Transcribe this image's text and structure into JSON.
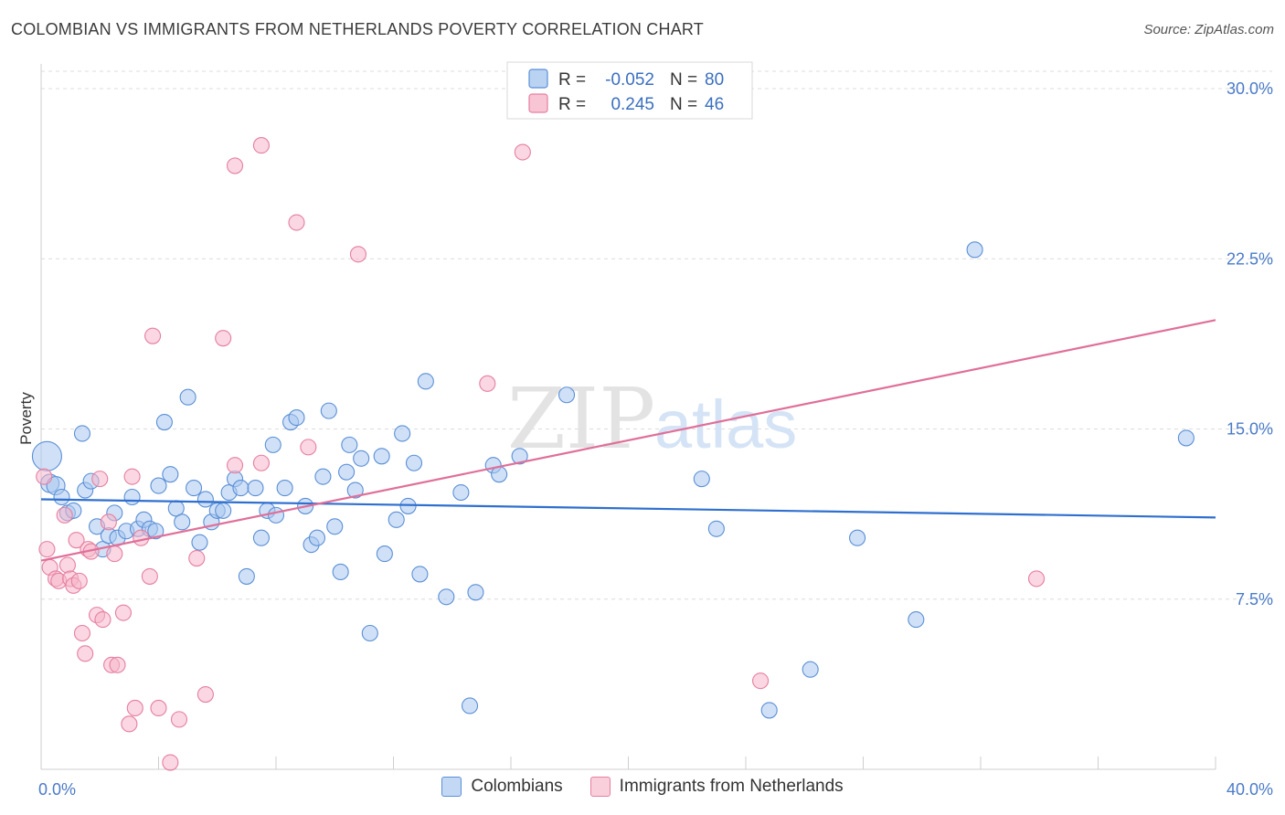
{
  "title": "COLOMBIAN VS IMMIGRANTS FROM NETHERLANDS POVERTY CORRELATION CHART",
  "source": "Source: ZipAtlas.com",
  "watermark": {
    "zip": "ZIP",
    "atlas": "atlas"
  },
  "colors": {
    "blue_fill": "#a9c8f0",
    "blue_stroke": "#5b8fd6",
    "blue_line": "#2f6fcf",
    "pink_fill": "#f6b7cb",
    "pink_stroke": "#e67fa0",
    "pink_line": "#e06f99",
    "grid": "#dcdcdc",
    "axis_text": "#4a7bc8"
  },
  "legend": {
    "rows": [
      {
        "r_label": "R =",
        "r_value": "-0.052",
        "n_label": "N =",
        "n_value": "80"
      },
      {
        "r_label": "R =",
        "r_value": "0.245",
        "n_label": "N =",
        "n_value": "46"
      }
    ]
  },
  "bottom_legend": [
    "Colombians",
    "Immigrants from Netherlands"
  ],
  "chart_data": {
    "type": "scatter",
    "xlabel": "",
    "ylabel": "Poverty",
    "xlim": [
      0,
      40
    ],
    "ylim": [
      0,
      31
    ],
    "x_tick_labels": [
      {
        "value": 0,
        "label": "0.0%"
      },
      {
        "value": 40,
        "label": "40.0%"
      }
    ],
    "y_tick_labels": [
      {
        "value": 7.5,
        "label": "7.5%"
      },
      {
        "value": 15,
        "label": "15.0%"
      },
      {
        "value": 22.5,
        "label": "22.5%"
      },
      {
        "value": 30,
        "label": "30.0%"
      }
    ],
    "grid": true,
    "series": [
      {
        "name": "Colombians",
        "trend": {
          "x": [
            0,
            40
          ],
          "y": [
            11.9,
            11.1
          ]
        },
        "points": [
          [
            0.2,
            13.8
          ],
          [
            0.3,
            12.6
          ],
          [
            0.5,
            12.5
          ],
          [
            0.7,
            12.0
          ],
          [
            0.9,
            11.3
          ],
          [
            1.1,
            11.4
          ],
          [
            1.4,
            14.8
          ],
          [
            1.5,
            12.3
          ],
          [
            1.7,
            12.7
          ],
          [
            1.9,
            10.7
          ],
          [
            2.1,
            9.7
          ],
          [
            2.3,
            10.3
          ],
          [
            2.5,
            11.3
          ],
          [
            2.6,
            10.2
          ],
          [
            2.9,
            10.5
          ],
          [
            3.1,
            12.0
          ],
          [
            3.3,
            10.6
          ],
          [
            3.5,
            11.0
          ],
          [
            3.7,
            10.6
          ],
          [
            3.9,
            10.5
          ],
          [
            4.0,
            12.5
          ],
          [
            4.2,
            15.3
          ],
          [
            4.4,
            13.0
          ],
          [
            4.6,
            11.5
          ],
          [
            4.8,
            10.9
          ],
          [
            5.0,
            16.4
          ],
          [
            5.2,
            12.4
          ],
          [
            5.4,
            10.0
          ],
          [
            5.6,
            11.9
          ],
          [
            5.8,
            10.9
          ],
          [
            6.0,
            11.4
          ],
          [
            6.2,
            11.4
          ],
          [
            6.4,
            12.2
          ],
          [
            6.6,
            12.8
          ],
          [
            6.8,
            12.4
          ],
          [
            7.0,
            8.5
          ],
          [
            7.3,
            12.4
          ],
          [
            7.5,
            10.2
          ],
          [
            7.7,
            11.4
          ],
          [
            7.9,
            14.3
          ],
          [
            8.0,
            11.2
          ],
          [
            8.3,
            12.4
          ],
          [
            8.5,
            15.3
          ],
          [
            8.7,
            15.5
          ],
          [
            9.0,
            11.6
          ],
          [
            9.2,
            9.9
          ],
          [
            9.4,
            10.2
          ],
          [
            9.6,
            12.9
          ],
          [
            9.8,
            15.8
          ],
          [
            10.0,
            10.7
          ],
          [
            10.2,
            8.7
          ],
          [
            10.4,
            13.1
          ],
          [
            10.5,
            14.3
          ],
          [
            10.7,
            12.3
          ],
          [
            10.9,
            13.7
          ],
          [
            11.2,
            6.0
          ],
          [
            11.6,
            13.8
          ],
          [
            11.7,
            9.5
          ],
          [
            12.1,
            11.0
          ],
          [
            12.3,
            14.8
          ],
          [
            12.5,
            11.6
          ],
          [
            12.7,
            13.5
          ],
          [
            12.9,
            8.6
          ],
          [
            13.1,
            17.1
          ],
          [
            13.8,
            7.6
          ],
          [
            14.3,
            12.2
          ],
          [
            14.6,
            2.8
          ],
          [
            14.8,
            7.8
          ],
          [
            15.4,
            13.4
          ],
          [
            15.6,
            13.0
          ],
          [
            16.3,
            13.8
          ],
          [
            17.9,
            16.5
          ],
          [
            22.5,
            12.8
          ],
          [
            23.0,
            10.6
          ],
          [
            24.8,
            2.6
          ],
          [
            26.2,
            4.4
          ],
          [
            27.8,
            10.2
          ],
          [
            29.8,
            6.6
          ],
          [
            31.8,
            22.9
          ],
          [
            39.0,
            14.6
          ]
        ]
      },
      {
        "name": "Immigrants from Netherlands",
        "trend": {
          "x": [
            0,
            40
          ],
          "y": [
            9.2,
            19.8
          ]
        },
        "points": [
          [
            0.1,
            12.9
          ],
          [
            0.2,
            9.7
          ],
          [
            0.3,
            8.9
          ],
          [
            0.5,
            8.4
          ],
          [
            0.6,
            8.3
          ],
          [
            0.8,
            11.2
          ],
          [
            0.9,
            9.0
          ],
          [
            1.0,
            8.4
          ],
          [
            1.1,
            8.1
          ],
          [
            1.2,
            10.1
          ],
          [
            1.3,
            8.3
          ],
          [
            1.4,
            6.0
          ],
          [
            1.5,
            5.1
          ],
          [
            1.6,
            9.7
          ],
          [
            1.7,
            9.6
          ],
          [
            1.9,
            6.8
          ],
          [
            2.0,
            12.8
          ],
          [
            2.1,
            6.6
          ],
          [
            2.3,
            10.9
          ],
          [
            2.4,
            4.6
          ],
          [
            2.5,
            9.5
          ],
          [
            2.6,
            4.6
          ],
          [
            2.8,
            6.9
          ],
          [
            3.0,
            2.0
          ],
          [
            3.1,
            12.9
          ],
          [
            3.2,
            2.7
          ],
          [
            3.4,
            10.2
          ],
          [
            3.7,
            8.5
          ],
          [
            3.8,
            19.1
          ],
          [
            4.0,
            2.7
          ],
          [
            4.4,
            0.3
          ],
          [
            4.7,
            2.2
          ],
          [
            5.3,
            9.3
          ],
          [
            5.6,
            3.3
          ],
          [
            6.2,
            19.0
          ],
          [
            6.6,
            13.4
          ],
          [
            6.6,
            26.6
          ],
          [
            7.5,
            13.5
          ],
          [
            7.5,
            27.5
          ],
          [
            8.7,
            24.1
          ],
          [
            9.1,
            14.2
          ],
          [
            10.8,
            22.7
          ],
          [
            15.2,
            17.0
          ],
          [
            16.4,
            27.2
          ],
          [
            24.5,
            3.9
          ],
          [
            33.9,
            8.4
          ]
        ]
      }
    ]
  }
}
